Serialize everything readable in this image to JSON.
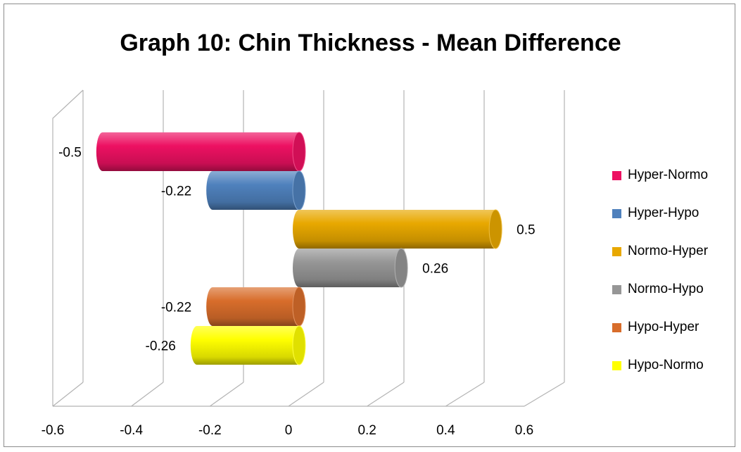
{
  "chart_data": {
    "type": "bar",
    "orientation": "horizontal",
    "style": "3d-cylinder",
    "title": "Graph 10: Chin Thickness - Mean Difference",
    "xlim": [
      -0.6,
      0.6
    ],
    "xticks": [
      -0.6,
      -0.4,
      -0.2,
      0,
      0.2,
      0.4,
      0.6
    ],
    "xtick_labels": [
      "-0.6",
      "-0.4",
      "-0.2",
      "0",
      "0.2",
      "0.4",
      "0.6"
    ],
    "grid": true,
    "legend_position": "right",
    "series": [
      {
        "name": "Hyper-Normo",
        "value": -0.5,
        "label": "-0.5",
        "color": "#ed1162"
      },
      {
        "name": "Hyper-Hypo",
        "value": -0.22,
        "label": "-0.22",
        "color": "#4f81bd"
      },
      {
        "name": "Normo-Hyper",
        "value": 0.5,
        "label": "0.5",
        "color": "#e8a800"
      },
      {
        "name": "Normo-Hypo",
        "value": 0.26,
        "label": "0.26",
        "color": "#969696"
      },
      {
        "name": "Hypo-Hyper",
        "value": -0.22,
        "label": "-0.22",
        "color": "#d86d2b"
      },
      {
        "name": "Hypo-Normo",
        "value": -0.26,
        "label": "-0.26",
        "color": "#ffff00"
      }
    ]
  }
}
